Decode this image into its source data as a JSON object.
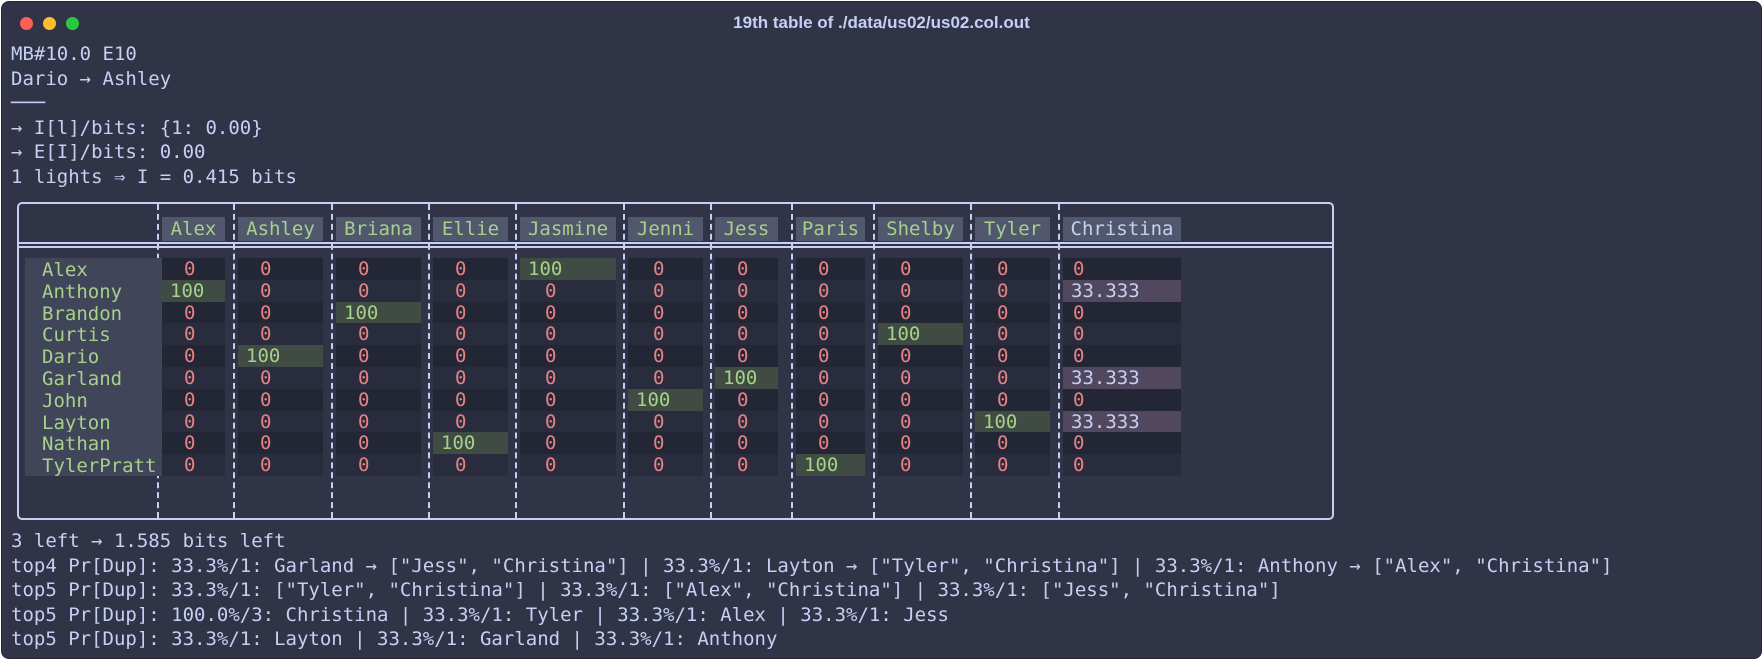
{
  "window": {
    "title": "19th table of ./data/us02/us02.col.out"
  },
  "header_lines": [
    "MB#10.0 E10",
    "Dario → Ashley",
    "───",
    "→ I[l]/bits: {1: 0.00}",
    "→ E[I]/bits: 0.00",
    "1 lights ⇒ I = 0.415 bits"
  ],
  "table": {
    "columns": [
      "Alex",
      "Ashley",
      "Briana",
      "Ellie",
      "Jasmine",
      "Jenni",
      "Jess",
      "Paris",
      "Shelby",
      "Tyler",
      "Christina"
    ],
    "rows": [
      {
        "name": "Alex",
        "values": [
          "0",
          "0",
          "0",
          "0",
          "100",
          "0",
          "0",
          "0",
          "0",
          "0",
          "0"
        ]
      },
      {
        "name": "Anthony",
        "values": [
          "100",
          "0",
          "0",
          "0",
          "0",
          "0",
          "0",
          "0",
          "0",
          "0",
          "33.333"
        ]
      },
      {
        "name": "Brandon",
        "values": [
          "0",
          "0",
          "100",
          "0",
          "0",
          "0",
          "0",
          "0",
          "0",
          "0",
          "0"
        ]
      },
      {
        "name": "Curtis",
        "values": [
          "0",
          "0",
          "0",
          "0",
          "0",
          "0",
          "0",
          "0",
          "100",
          "0",
          "0"
        ]
      },
      {
        "name": "Dario",
        "values": [
          "0",
          "100",
          "0",
          "0",
          "0",
          "0",
          "0",
          "0",
          "0",
          "0",
          "0"
        ]
      },
      {
        "name": "Garland",
        "values": [
          "0",
          "0",
          "0",
          "0",
          "0",
          "0",
          "100",
          "0",
          "0",
          "0",
          "33.333"
        ]
      },
      {
        "name": "John",
        "values": [
          "0",
          "0",
          "0",
          "0",
          "0",
          "100",
          "0",
          "0",
          "0",
          "0",
          "0"
        ]
      },
      {
        "name": "Layton",
        "values": [
          "0",
          "0",
          "0",
          "0",
          "0",
          "0",
          "0",
          "0",
          "0",
          "100",
          "33.333"
        ]
      },
      {
        "name": "Nathan",
        "values": [
          "0",
          "0",
          "0",
          "100",
          "0",
          "0",
          "0",
          "0",
          "0",
          "0",
          "0"
        ]
      },
      {
        "name": "TylerPratt",
        "values": [
          "0",
          "0",
          "0",
          "0",
          "0",
          "0",
          "0",
          "100",
          "0",
          "0",
          "0"
        ]
      }
    ]
  },
  "footer_lines": [
    "3 left → 1.585 bits left",
    "top4 Pr[Dup]: 33.3%/1: Garland → [\"Jess\", \"Christina\"] | 33.3%/1: Layton → [\"Tyler\", \"Christina\"] | 33.3%/1: Anthony → [\"Alex\", \"Christina\"]",
    "top5 Pr[Dup]: 33.3%/1: [\"Tyler\", \"Christina\"] | 33.3%/1: [\"Alex\", \"Christina\"] | 33.3%/1: [\"Jess\", \"Christina\"]",
    "top5 Pr[Dup]: 100.0%/3: Christina | 33.3%/1: Tyler | 33.3%/1: Alex | 33.3%/1: Jess",
    "top5 Pr[Dup]: 33.3%/1: Layton | 33.3%/1: Garland | 33.3%/1: Anthony"
  ],
  "colors": {
    "background": "#303446",
    "text": "#c6d0f5",
    "name_green": "#a6d189",
    "zero_red": "#e78284",
    "hit_bg": "#3f4b43",
    "partial_bg": "#51485f"
  }
}
